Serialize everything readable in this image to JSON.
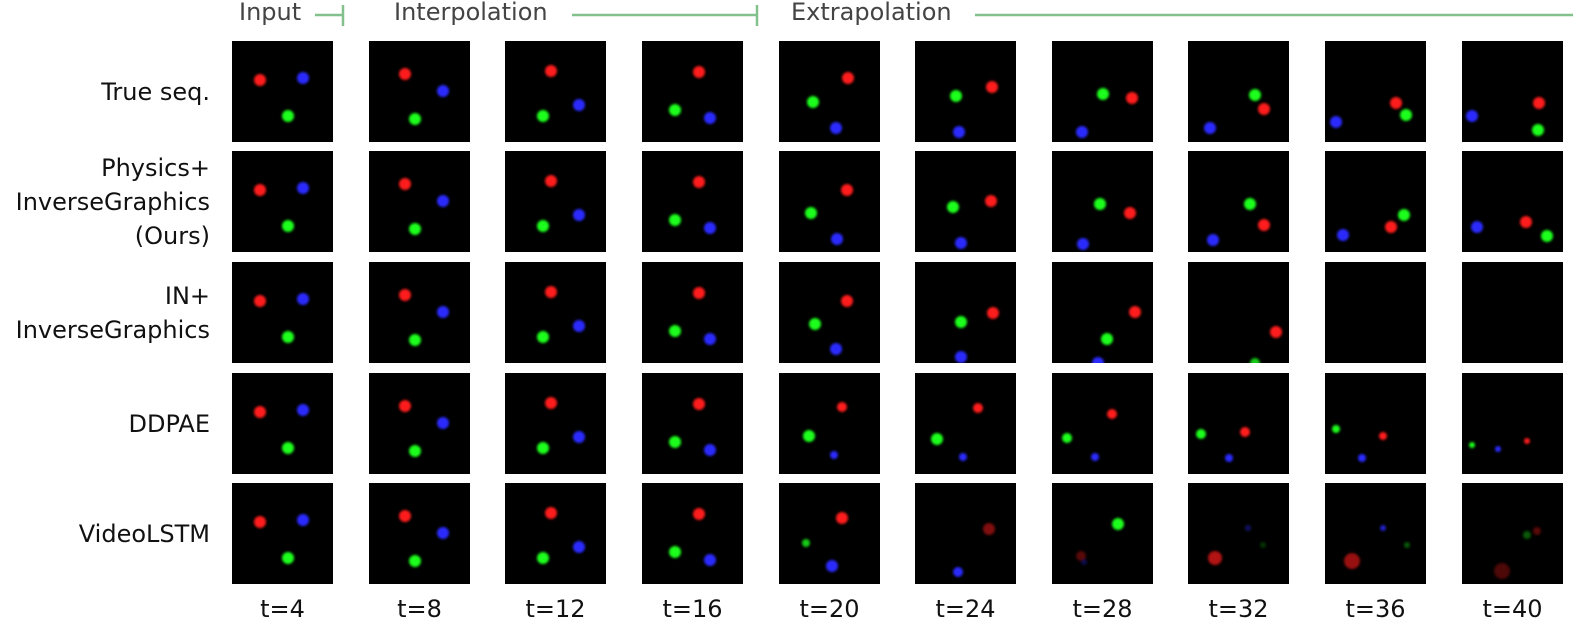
{
  "header": {
    "segments": [
      "Input",
      "Interpolation",
      "Extrapolation"
    ]
  },
  "rows": [
    {
      "lines": [
        "True seq."
      ]
    },
    {
      "lines": [
        "Physics+",
        "InverseGraphics",
        "(Ours)"
      ]
    },
    {
      "lines": [
        "IN+",
        "InverseGraphics"
      ]
    },
    {
      "lines": [
        "DDPAE"
      ]
    },
    {
      "lines": [
        "VideoLSTM"
      ]
    }
  ],
  "columns": [
    "t=4",
    "t=8",
    "t=12",
    "t=16",
    "t=20",
    "t=24",
    "t=28",
    "t=32",
    "t=36",
    "t=40"
  ]
}
